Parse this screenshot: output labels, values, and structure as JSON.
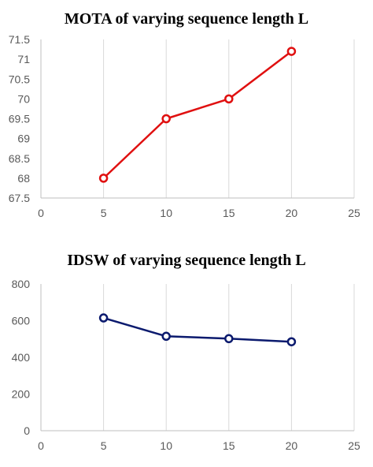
{
  "chart_data": [
    {
      "type": "line",
      "title": "MOTA of varying sequence length L",
      "x": [
        5,
        10,
        15,
        20
      ],
      "series": [
        {
          "values": [
            68.0,
            69.5,
            70.0,
            71.2
          ],
          "color": "#e01010"
        }
      ],
      "xlim": [
        0,
        25
      ],
      "ylim": [
        67.5,
        71.5
      ],
      "xticks": [
        0,
        5,
        10,
        15,
        20,
        25
      ],
      "yticks": [
        67.5,
        68,
        68.5,
        69,
        69.5,
        70,
        70.5,
        71,
        71.5
      ],
      "xtick_labels": [
        "0",
        "5",
        "10",
        "15",
        "20",
        "25"
      ],
      "ytick_labels": [
        "67.5",
        "68",
        "68.5",
        "69",
        "69.5",
        "70",
        "70.5",
        "71",
        "71.5"
      ],
      "grid": "vertical",
      "marker": "hollow-circle"
    },
    {
      "type": "line",
      "title": "IDSW of varying sequence length L",
      "x": [
        5,
        10,
        15,
        20
      ],
      "series": [
        {
          "values": [
            615,
            515,
            502,
            485
          ],
          "color": "#0b1a6e"
        }
      ],
      "xlim": [
        0,
        25
      ],
      "ylim": [
        0,
        800
      ],
      "xticks": [
        0,
        5,
        10,
        15,
        20,
        25
      ],
      "yticks": [
        0,
        200,
        400,
        600,
        800
      ],
      "xtick_labels": [
        "0",
        "5",
        "10",
        "15",
        "20",
        "25"
      ],
      "ytick_labels": [
        "0",
        "200",
        "400",
        "600",
        "800"
      ],
      "grid": "vertical",
      "marker": "hollow-circle"
    }
  ]
}
